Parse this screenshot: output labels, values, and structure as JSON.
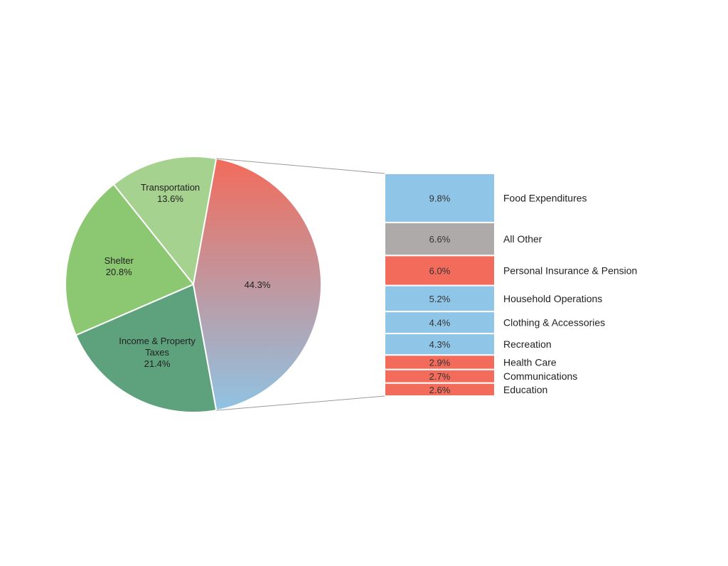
{
  "chart_data": {
    "type": "bar-of-pie",
    "pie": {
      "slices": [
        {
          "label_lines": [
            "Transportation"
          ],
          "value": 13.6,
          "value_label": "13.6%",
          "color": "#a6d28f"
        },
        {
          "label_lines": [
            "Shelter"
          ],
          "value": 20.8,
          "value_label": "20.8%",
          "color": "#8cc772"
        },
        {
          "label_lines": [
            "Income & Property",
            "Taxes"
          ],
          "value": 21.4,
          "value_label": "21.4%",
          "color": "#5ea17d"
        },
        {
          "label_lines": [],
          "value": 44.3,
          "value_label": "44.3%",
          "color_top": "#f26b5b",
          "color_bottom": "#8fc3e3",
          "exploded": true
        }
      ]
    },
    "breakdown": {
      "bars": [
        {
          "label": "Food Expenditures",
          "value": 9.8,
          "value_label": "9.8%",
          "color": "#8fc5e6"
        },
        {
          "label": "All Other",
          "value": 6.6,
          "value_label": "6.6%",
          "color": "#aeaaa9"
        },
        {
          "label": "Personal Insurance & Pension",
          "value": 6.0,
          "value_label": "6.0%",
          "color": "#f26b5b"
        },
        {
          "label": "Household Operations",
          "value": 5.2,
          "value_label": "5.2%",
          "color": "#8fc5e6"
        },
        {
          "label": "Clothing & Accessories",
          "value": 4.4,
          "value_label": "4.4%",
          "color": "#8fc5e6"
        },
        {
          "label": "Recreation",
          "value": 4.3,
          "value_label": "4.3%",
          "color": "#8fc5e6"
        },
        {
          "label": "Health Care",
          "value": 2.9,
          "value_label": "2.9%",
          "color": "#f26b5b"
        },
        {
          "label": "Communications",
          "value": 2.7,
          "value_label": "2.7%",
          "color": "#f26b5b"
        },
        {
          "label": "Education",
          "value": 2.6,
          "value_label": "2.6%",
          "color": "#f26b5b"
        }
      ]
    }
  }
}
